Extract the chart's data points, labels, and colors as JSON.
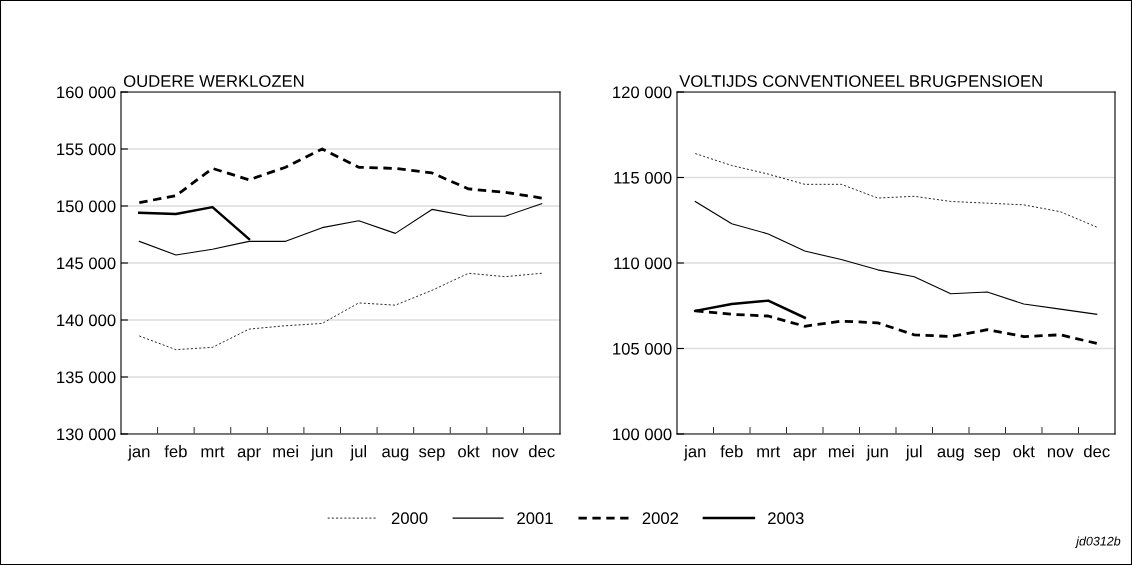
{
  "chart_data": [
    {
      "type": "line",
      "title": "OUDERE WERKLOZEN",
      "categories": [
        "jan",
        "feb",
        "mrt",
        "apr",
        "mei",
        "jun",
        "jul",
        "aug",
        "sep",
        "okt",
        "nov",
        "dec"
      ],
      "ylim": [
        130000,
        160000
      ],
      "yticks": [
        {
          "value": 130000,
          "label": "130 000"
        },
        {
          "value": 135000,
          "label": "135 000"
        },
        {
          "value": 140000,
          "label": "140 000"
        },
        {
          "value": 145000,
          "label": "145 000"
        },
        {
          "value": 150000,
          "label": "150 000"
        },
        {
          "value": 155000,
          "label": "155 000"
        },
        {
          "value": 160000,
          "label": "160 000"
        }
      ],
      "grid": "y",
      "legend": "bottom",
      "annotations": [
        "jd0312b"
      ],
      "series": [
        {
          "name": "2000",
          "color": "#000000",
          "line_style": "dotted",
          "values": [
            138600,
            137400,
            137600,
            139200,
            139500,
            139700,
            141500,
            141300,
            142600,
            144100,
            143800,
            144100
          ]
        },
        {
          "name": "2001",
          "color": "#000000",
          "line_style": "solid",
          "values": [
            146900,
            145700,
            146200,
            146900,
            146900,
            148100,
            148700,
            147600,
            149700,
            149100,
            149100,
            150200
          ]
        },
        {
          "name": "2002",
          "color": "#000000",
          "line_style": "dashed",
          "values": [
            150300,
            150900,
            153300,
            152300,
            153400,
            155000,
            153400,
            153300,
            152900,
            151500,
            151200,
            150700
          ]
        },
        {
          "name": "2003",
          "color": "#000000",
          "line_style": "solid",
          "values": [
            149400,
            149300,
            149900,
            147100,
            null,
            null,
            null,
            null,
            null,
            null,
            null,
            null
          ]
        }
      ]
    },
    {
      "type": "line",
      "title": "VOLTIJDS CONVENTIONEEL BRUGPENSIOEN",
      "categories": [
        "jan",
        "feb",
        "mrt",
        "apr",
        "mei",
        "jun",
        "jul",
        "aug",
        "sep",
        "okt",
        "nov",
        "dec"
      ],
      "ylim": [
        100000,
        120000
      ],
      "yticks": [
        {
          "value": 100000,
          "label": "100 000"
        },
        {
          "value": 105000,
          "label": "105 000"
        },
        {
          "value": 110000,
          "label": "110 000"
        },
        {
          "value": 115000,
          "label": "115 000"
        },
        {
          "value": 120000,
          "label": "120 000"
        }
      ],
      "grid": "y",
      "series": [
        {
          "name": "2000",
          "color": "#000000",
          "line_style": "dotted",
          "values": [
            116400,
            115700,
            115200,
            114600,
            114600,
            113800,
            113900,
            113600,
            113500,
            113400,
            113000,
            112100
          ]
        },
        {
          "name": "2001",
          "color": "#000000",
          "line_style": "solid",
          "values": [
            113600,
            112300,
            111700,
            110700,
            110200,
            109600,
            109200,
            108200,
            108300,
            107600,
            107300,
            107000
          ]
        },
        {
          "name": "2002",
          "color": "#000000",
          "line_style": "dashed",
          "values": [
            107200,
            107000,
            106900,
            106300,
            106600,
            106500,
            105800,
            105700,
            106100,
            105700,
            105800,
            105300
          ]
        },
        {
          "name": "2003",
          "color": "#000000",
          "line_style": "solid",
          "values": [
            107200,
            107600,
            107800,
            106800,
            null,
            null,
            null,
            null,
            null,
            null,
            null,
            null
          ]
        }
      ]
    }
  ]
}
